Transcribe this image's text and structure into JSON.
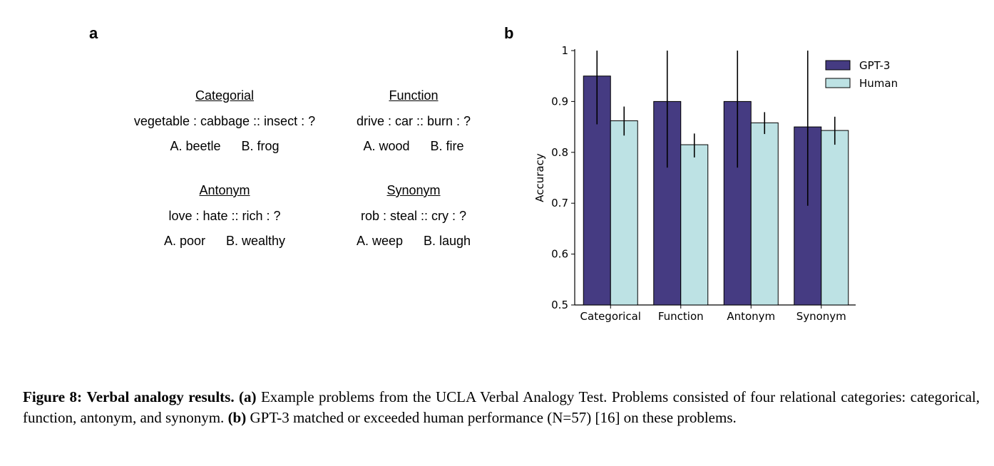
{
  "panel_a": {
    "letter": "a",
    "analogies": [
      {
        "category": "Categorial",
        "problem": "vegetable : cabbage :: insect : ?",
        "option_a": "A. beetle",
        "option_b": "B. frog"
      },
      {
        "category": "Function",
        "problem": "drive : car :: burn : ?",
        "option_a": "A. wood",
        "option_b": "B. fire"
      },
      {
        "category": "Antonym",
        "problem": "love : hate :: rich : ?",
        "option_a": "A. poor",
        "option_b": "B. wealthy"
      },
      {
        "category": "Synonym",
        "problem": "rob : steal :: cry : ?",
        "option_a": "A. weep",
        "option_b": "B. laugh"
      }
    ]
  },
  "panel_b": {
    "letter": "b"
  },
  "chart_data": {
    "type": "bar",
    "categories": [
      "Categorical",
      "Function",
      "Antonym",
      "Synonym"
    ],
    "series": [
      {
        "name": "GPT-3",
        "values": [
          0.95,
          0.9,
          0.9,
          0.85
        ],
        "error_low": [
          0.855,
          0.77,
          0.77,
          0.695
        ],
        "error_high": [
          1.0,
          1.0,
          1.0,
          1.0
        ],
        "color": "#453b82"
      },
      {
        "name": "Human",
        "values": [
          0.862,
          0.815,
          0.858,
          0.843
        ],
        "error_low": [
          0.833,
          0.79,
          0.836,
          0.815
        ],
        "error_high": [
          0.89,
          0.837,
          0.879,
          0.87
        ],
        "color": "#bde2e4"
      }
    ],
    "ylabel": "Accuracy",
    "xlabel": "",
    "ylim": [
      0.5,
      1.0
    ],
    "yticks": [
      "0.5",
      "0.6",
      "0.7",
      "0.8",
      "0.9",
      "1"
    ],
    "legend_position": "top-right",
    "grid": false
  },
  "caption": {
    "figure_label": "Figure 8:",
    "title": "Verbal analogy results.",
    "a_marker": "(a)",
    "a_text": "Example problems from the UCLA Verbal Analogy Test. Problems consisted of four relational categories: categorical, function, antonym, and synonym.",
    "b_marker": "(b)",
    "b_text": "GPT-3 matched or exceeded human performance (N=57) [16] on these problems."
  }
}
